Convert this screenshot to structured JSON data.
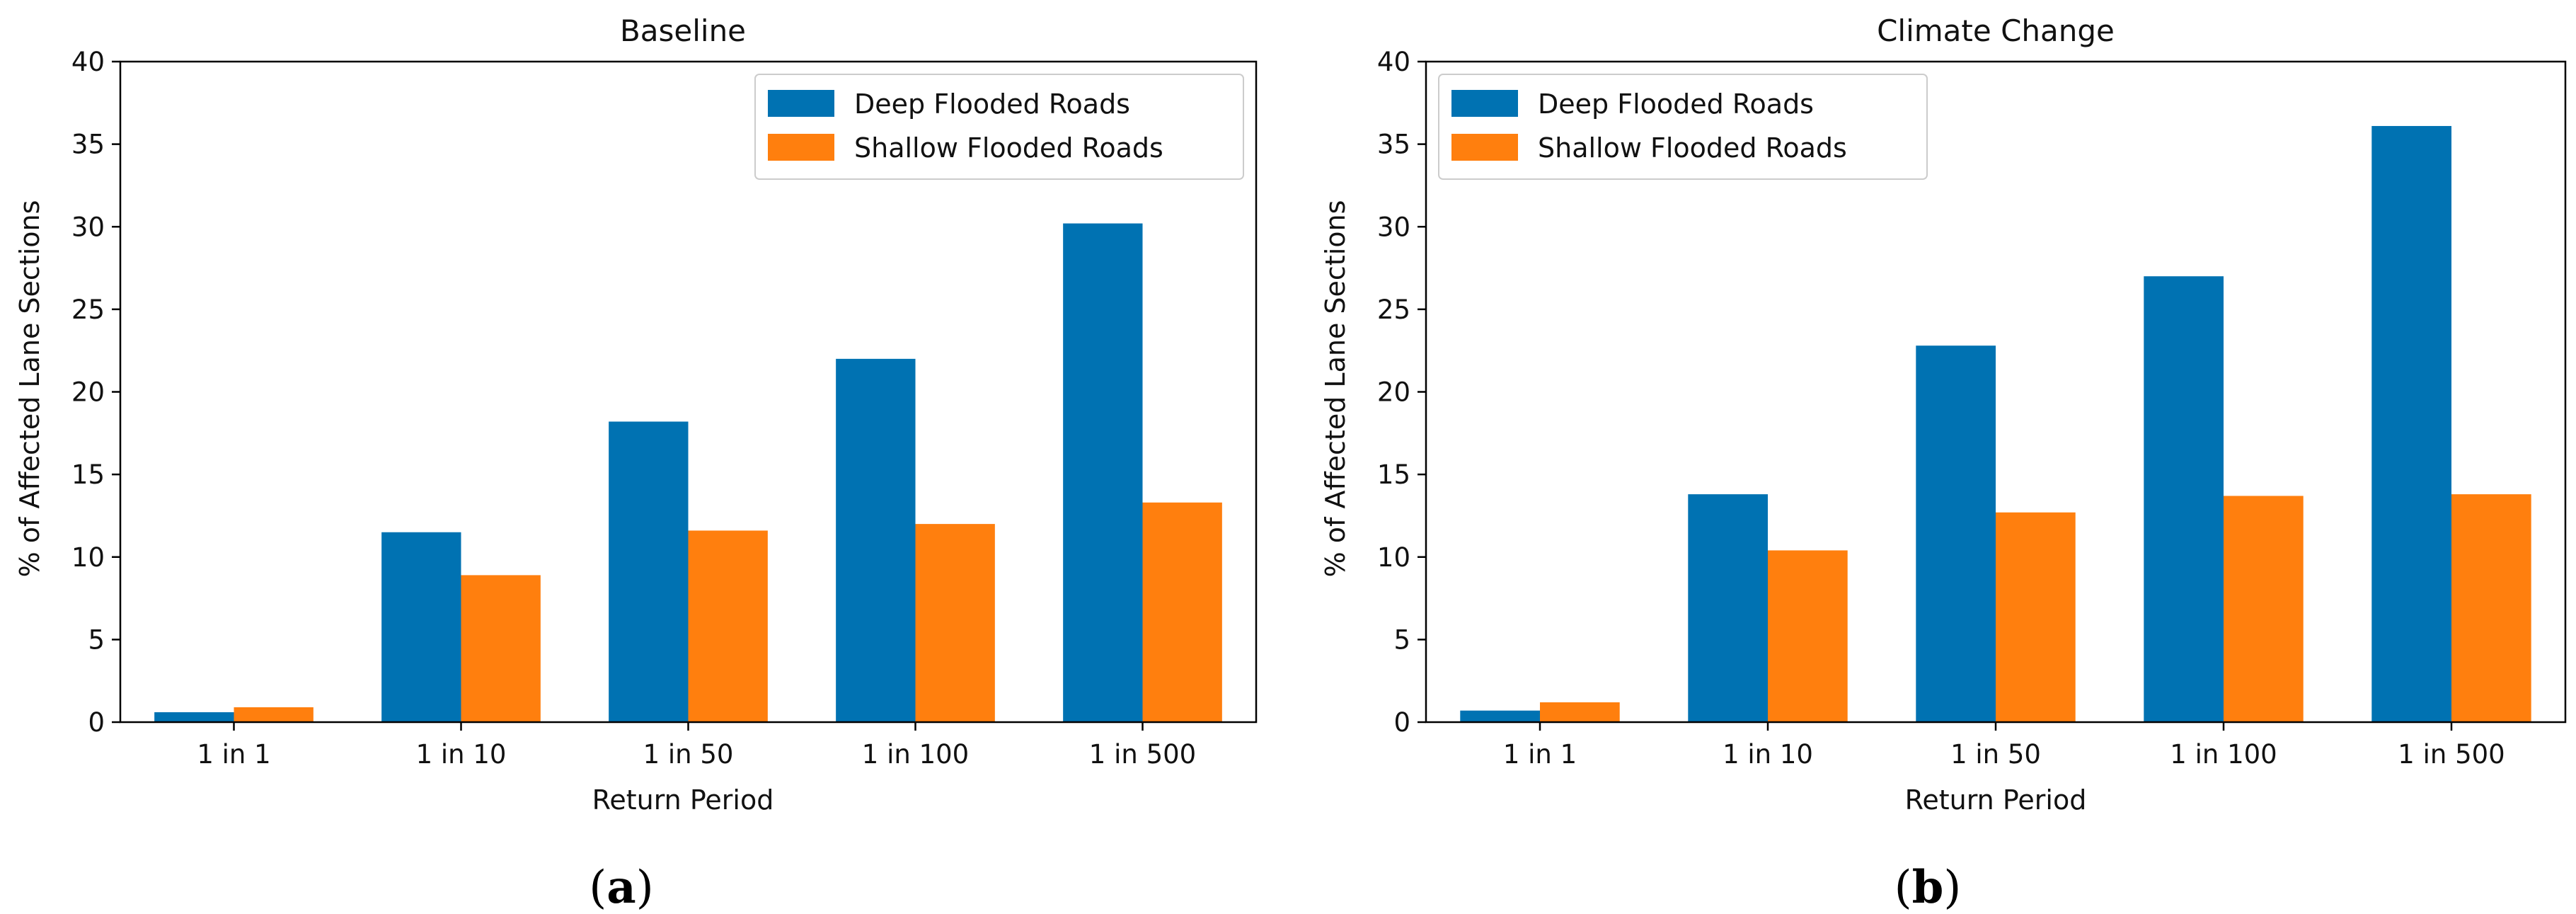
{
  "colors": {
    "deep": "#0072b2",
    "shallow": "#ff7f0e"
  },
  "chart_data": [
    {
      "type": "bar",
      "title": "Baseline",
      "xlabel": "Return Period",
      "ylabel": "% of Affected Lane Sections",
      "ylim": [
        0,
        40
      ],
      "yticks": [
        0,
        5,
        10,
        15,
        20,
        25,
        30,
        35,
        40
      ],
      "categories": [
        "1 in 1",
        "1 in 10",
        "1 in 50",
        "1 in 100",
        "1 in 500"
      ],
      "series": [
        {
          "name": "Deep Flooded Roads",
          "values": [
            0.6,
            11.5,
            18.2,
            22.0,
            30.2
          ]
        },
        {
          "name": "Shallow Flooded Roads",
          "values": [
            0.9,
            8.9,
            11.6,
            12.0,
            13.3
          ]
        }
      ],
      "legend": "top-right",
      "panel_label": "a"
    },
    {
      "type": "bar",
      "title": "Climate Change",
      "xlabel": "Return Period",
      "ylabel": "% of Affected Lane Sections",
      "ylim": [
        0,
        40
      ],
      "yticks": [
        0,
        5,
        10,
        15,
        20,
        25,
        30,
        35,
        40
      ],
      "categories": [
        "1 in 1",
        "1 in 10",
        "1 in 50",
        "1 in 100",
        "1 in 500"
      ],
      "series": [
        {
          "name": "Deep Flooded Roads",
          "values": [
            0.7,
            13.8,
            22.8,
            27.0,
            36.1
          ]
        },
        {
          "name": "Shallow Flooded Roads",
          "values": [
            1.2,
            10.4,
            12.7,
            13.7,
            13.8
          ]
        }
      ],
      "legend": "top-left",
      "panel_label": "b"
    }
  ]
}
